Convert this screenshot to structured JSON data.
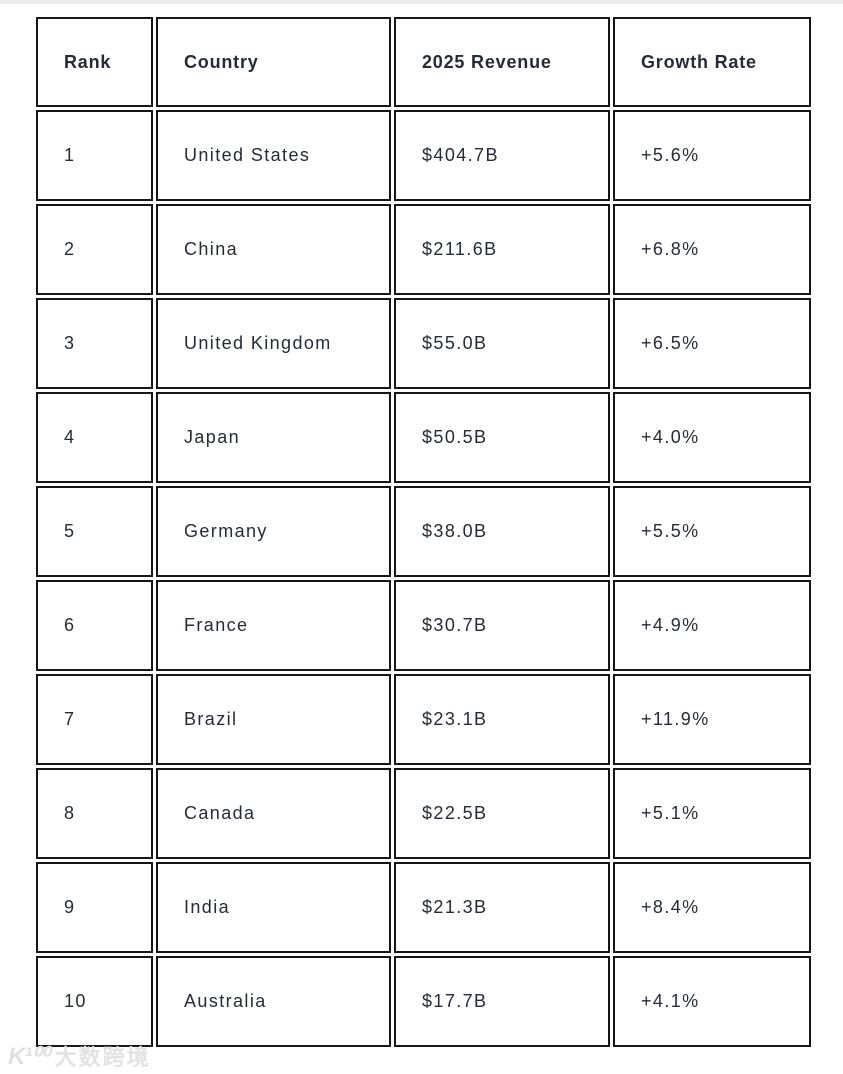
{
  "chart_data": {
    "type": "table",
    "title": "",
    "columns": [
      "Rank",
      "Country",
      "2025 Revenue",
      "Growth Rate"
    ],
    "rows": [
      {
        "rank": "1",
        "country": "United States",
        "revenue": "$404.7B",
        "growth": "+5.6%"
      },
      {
        "rank": "2",
        "country": "China",
        "revenue": "$211.6B",
        "growth": "+6.8%"
      },
      {
        "rank": "3",
        "country": "United Kingdom",
        "revenue": "$55.0B",
        "growth": "+6.5%"
      },
      {
        "rank": "4",
        "country": "Japan",
        "revenue": "$50.5B",
        "growth": "+4.0%"
      },
      {
        "rank": "5",
        "country": "Germany",
        "revenue": "$38.0B",
        "growth": "+5.5%"
      },
      {
        "rank": "6",
        "country": "France",
        "revenue": "$30.7B",
        "growth": "+4.9%"
      },
      {
        "rank": "7",
        "country": "Brazil",
        "revenue": "$23.1B",
        "growth": "+11.9%"
      },
      {
        "rank": "8",
        "country": "Canada",
        "revenue": "$22.5B",
        "growth": "+5.1%"
      },
      {
        "rank": "9",
        "country": "India",
        "revenue": "$21.3B",
        "growth": "+8.4%"
      },
      {
        "rank": "10",
        "country": "Australia",
        "revenue": "$17.7B",
        "growth": "+4.1%"
      }
    ],
    "numeric": {
      "revenue_billions_usd": [
        404.7,
        211.6,
        55.0,
        50.5,
        38.0,
        30.7,
        23.1,
        22.5,
        21.3,
        17.7
      ],
      "growth_rate_pct": [
        5.6,
        6.8,
        6.5,
        4.0,
        5.5,
        4.9,
        11.9,
        5.1,
        8.4,
        4.1
      ]
    },
    "layout": {
      "grid": "bordered-cells-with-gaps",
      "header_bold": true
    }
  },
  "watermark": {
    "logo_text": "K¹⁰⁰",
    "text": "大数跨境"
  },
  "colors": {
    "cell_border": "#161616",
    "text": "#262b35",
    "top_strip": "#ededed",
    "watermark": "#e3e3e3",
    "background": "#ffffff"
  }
}
